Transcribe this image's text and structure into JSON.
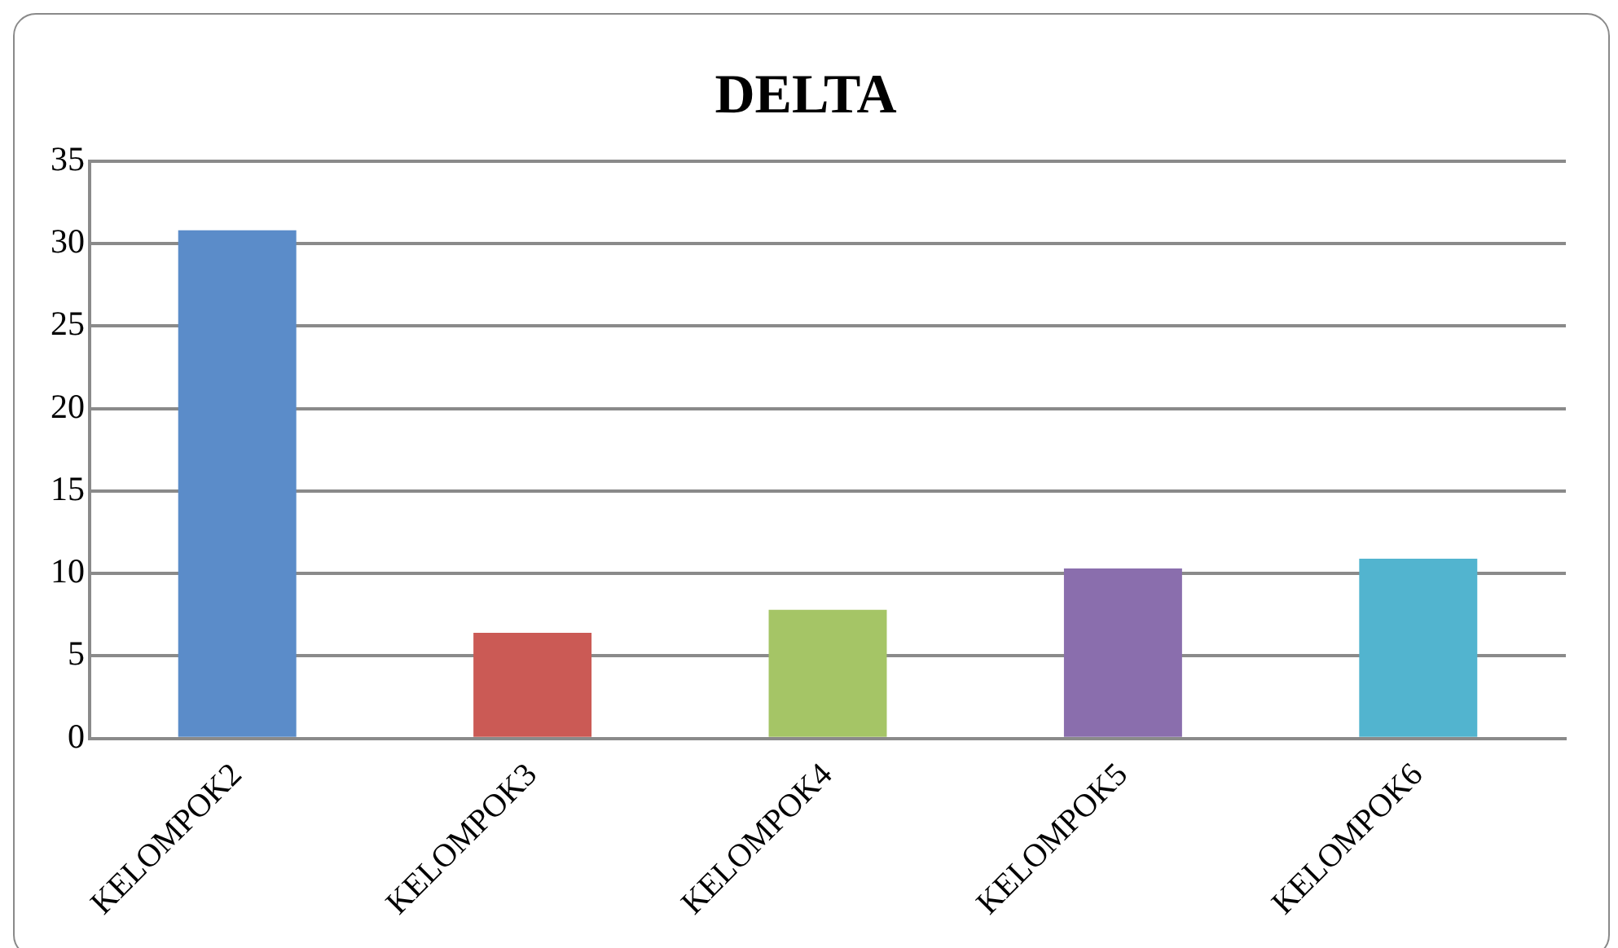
{
  "chart_data": {
    "type": "bar",
    "title": "DELTA",
    "categories": [
      "KELOMPOK2",
      "KELOMPOK3",
      "KELOMPOK4",
      "KELOMPOK5",
      "KELOMPOK6"
    ],
    "values": [
      30.8,
      6.4,
      7.8,
      10.3,
      10.9
    ],
    "colors": [
      "#5b8cc9",
      "#cb5a55",
      "#a5c566",
      "#8a6ead",
      "#52b4cf"
    ],
    "ylim": [
      0,
      35
    ],
    "yticks": [
      0,
      5,
      10,
      15,
      20,
      25,
      30,
      35
    ],
    "grid": "y",
    "legend": false
  }
}
